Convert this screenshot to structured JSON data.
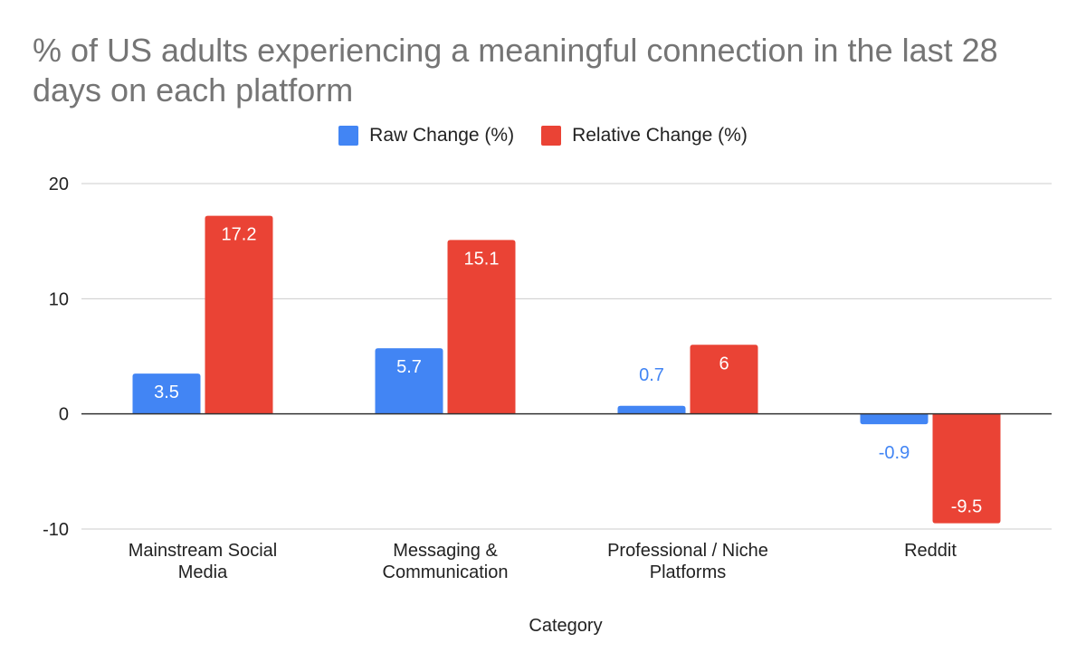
{
  "chart_data": {
    "type": "bar",
    "title": "% of US adults experiencing a meaningful connection in the last 28 days on each platform",
    "xlabel": "Category",
    "ylabel": "",
    "categories": [
      [
        "Mainstream Social",
        "Media"
      ],
      [
        "Messaging &",
        "Communication"
      ],
      [
        "Professional / Niche",
        "Platforms"
      ],
      [
        "Reddit"
      ]
    ],
    "series": [
      {
        "name": "Raw Change (%)",
        "color": "#4285f4",
        "values": [
          3.5,
          5.7,
          0.7,
          -0.9
        ],
        "labels": [
          "3.5",
          "5.7",
          "0.7",
          "-0.9"
        ]
      },
      {
        "name": "Relative Change (%)",
        "color": "#ea4335",
        "values": [
          17.2,
          15.1,
          6,
          -9.5
        ],
        "labels": [
          "17.2",
          "15.1",
          "6",
          "-9.5"
        ]
      }
    ],
    "ylim": [
      -10,
      20
    ],
    "yticks": [
      20,
      10,
      0,
      -10
    ],
    "ytick_labels": [
      "20",
      "10",
      "0",
      "-10"
    ],
    "grid": true,
    "legend_position": "top-center"
  }
}
